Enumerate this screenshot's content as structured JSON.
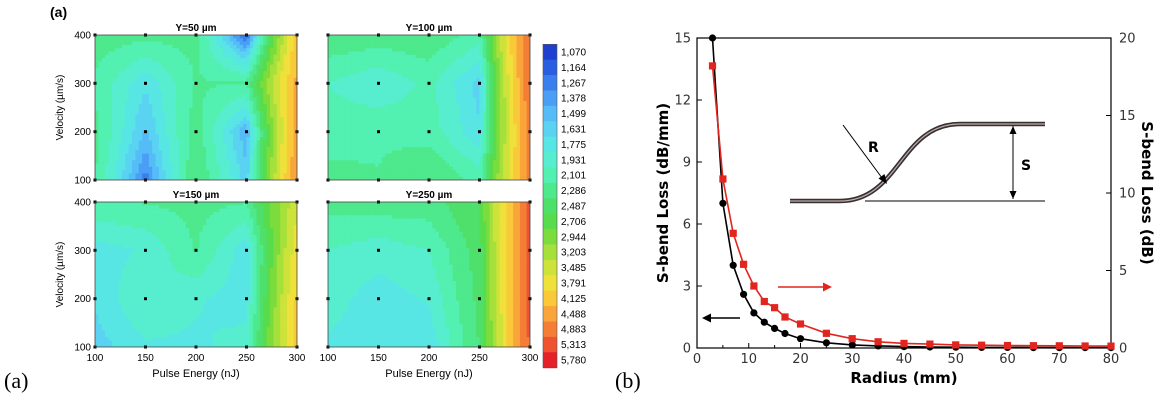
{
  "figure": {
    "left_inner_label": "(a)",
    "left_panel_label": "(a)",
    "right_panel_label": "(b)"
  },
  "chart_data": [
    {
      "type": "heatmap",
      "xlabel": "Pulse Energy (nJ)",
      "ylabel": "Velocity (µm/s)",
      "x_ticks": [
        "100",
        "150",
        "200",
        "250",
        "300"
      ],
      "y_ticks": [
        "100",
        "200",
        "300",
        "400"
      ],
      "xlim": [
        100,
        300
      ],
      "ylim": [
        100,
        400
      ],
      "colorbar_ticks": [
        "1,070",
        "1,164",
        "1,267",
        "1,378",
        "1,499",
        "1,631",
        "1,775",
        "1,931",
        "2,101",
        "2,286",
        "2,487",
        "2,706",
        "2,944",
        "3,203",
        "3,485",
        "3,791",
        "4,125",
        "4,488",
        "4,883",
        "5,313",
        "5,780"
      ],
      "colorbar_colors": [
        "#1f3fd0",
        "#2a5ee0",
        "#3a7fee",
        "#4a9ff5",
        "#55bcf7",
        "#5ad3f2",
        "#58e6e4",
        "#56eecf",
        "#52f0b1",
        "#4ee88d",
        "#4fe06b",
        "#56dc4c",
        "#7cdc3c",
        "#a6e03a",
        "#cde23a",
        "#efe03a",
        "#f9c93a",
        "#f9a53a",
        "#f47e35",
        "#ee5332",
        "#e4222a"
      ],
      "subplots": [
        {
          "title": "Y=50 µm",
          "x": [
            100,
            150,
            200,
            250,
            300
          ],
          "y": [
            100,
            200,
            300,
            400
          ],
          "z": [
            [
              2300,
              1300,
              2500,
              1700,
              4900
            ],
            [
              2350,
              1600,
              2400,
              1500,
              4700
            ],
            [
              2250,
              1800,
              2300,
              2300,
              4600
            ],
            [
              2400,
              2350,
              2350,
              1200,
              4300
            ]
          ]
        },
        {
          "title": "Y=100 µm",
          "x": [
            100,
            150,
            200,
            250,
            300
          ],
          "y": [
            100,
            200,
            300,
            400
          ],
          "z": [
            [
              2350,
              2300,
              2500,
              2200,
              5000
            ],
            [
              2200,
              2250,
              2200,
              1800,
              5100
            ],
            [
              2100,
              1950,
              2150,
              1700,
              5300
            ],
            [
              2450,
              2400,
              2450,
              2200,
              5400
            ]
          ]
        },
        {
          "title": "Y=150 µm",
          "x": [
            100,
            150,
            200,
            250,
            300
          ],
          "y": [
            100,
            200,
            300,
            400
          ],
          "z": [
            [
              1700,
              1900,
              1900,
              2000,
              4300
            ],
            [
              1800,
              2100,
              1950,
              1850,
              4200
            ],
            [
              1850,
              1950,
              2300,
              1800,
              4000
            ],
            [
              2250,
              2300,
              2350,
              2300,
              3700
            ]
          ]
        },
        {
          "title": "Y=250 µm",
          "x": [
            100,
            150,
            200,
            250,
            300
          ],
          "y": [
            100,
            200,
            300,
            400
          ],
          "z": [
            [
              1900,
              1850,
              1800,
              2500,
              5400
            ],
            [
              2000,
              1850,
              1950,
              2550,
              5450
            ],
            [
              2100,
              2000,
              2100,
              2600,
              5500
            ],
            [
              2350,
              2400,
              2400,
              2700,
              5500
            ]
          ]
        }
      ]
    },
    {
      "type": "line",
      "xlabel": "Radius (mm)",
      "ylabel": "S-bend Loss (dB/mm)",
      "ylabel_right": "S-bend Loss (dB)",
      "xlim": [
        0,
        80
      ],
      "ylim": [
        0,
        15
      ],
      "ylim_right": [
        0,
        20
      ],
      "x_ticks": [
        "0",
        "10",
        "20",
        "30",
        "40",
        "50",
        "60",
        "70",
        "80"
      ],
      "y_ticks": [
        "0",
        "3",
        "6",
        "9",
        "12",
        "15"
      ],
      "y_ticks_right": [
        "0",
        "5",
        "10",
        "15",
        "20"
      ],
      "series": [
        {
          "axis": "left",
          "color": "#000000",
          "marker": "circle",
          "x": [
            3,
            5,
            7,
            9,
            11,
            13,
            15,
            17,
            20,
            25,
            30,
            35,
            40,
            45,
            50,
            55,
            60,
            65,
            70,
            75,
            80
          ],
          "y": [
            15.0,
            7.0,
            4.0,
            2.6,
            1.7,
            1.25,
            0.95,
            0.7,
            0.45,
            0.25,
            0.15,
            0.1,
            0.07,
            0.05,
            0.04,
            0.03,
            0.03,
            0.02,
            0.02,
            0.02,
            0.02
          ]
        },
        {
          "axis": "right",
          "color": "#e0261f",
          "marker": "square",
          "x": [
            3,
            5,
            7,
            9,
            11,
            13,
            15,
            17,
            20,
            25,
            30,
            35,
            40,
            45,
            50,
            55,
            60,
            65,
            70,
            75,
            80
          ],
          "y": [
            18.2,
            10.9,
            7.4,
            5.4,
            4.0,
            3.0,
            2.6,
            2.0,
            1.55,
            0.95,
            0.6,
            0.4,
            0.3,
            0.25,
            0.2,
            0.18,
            0.16,
            0.15,
            0.14,
            0.13,
            0.12
          ]
        }
      ],
      "inset_labels": {
        "radius": "R",
        "offset": "S"
      }
    }
  ]
}
